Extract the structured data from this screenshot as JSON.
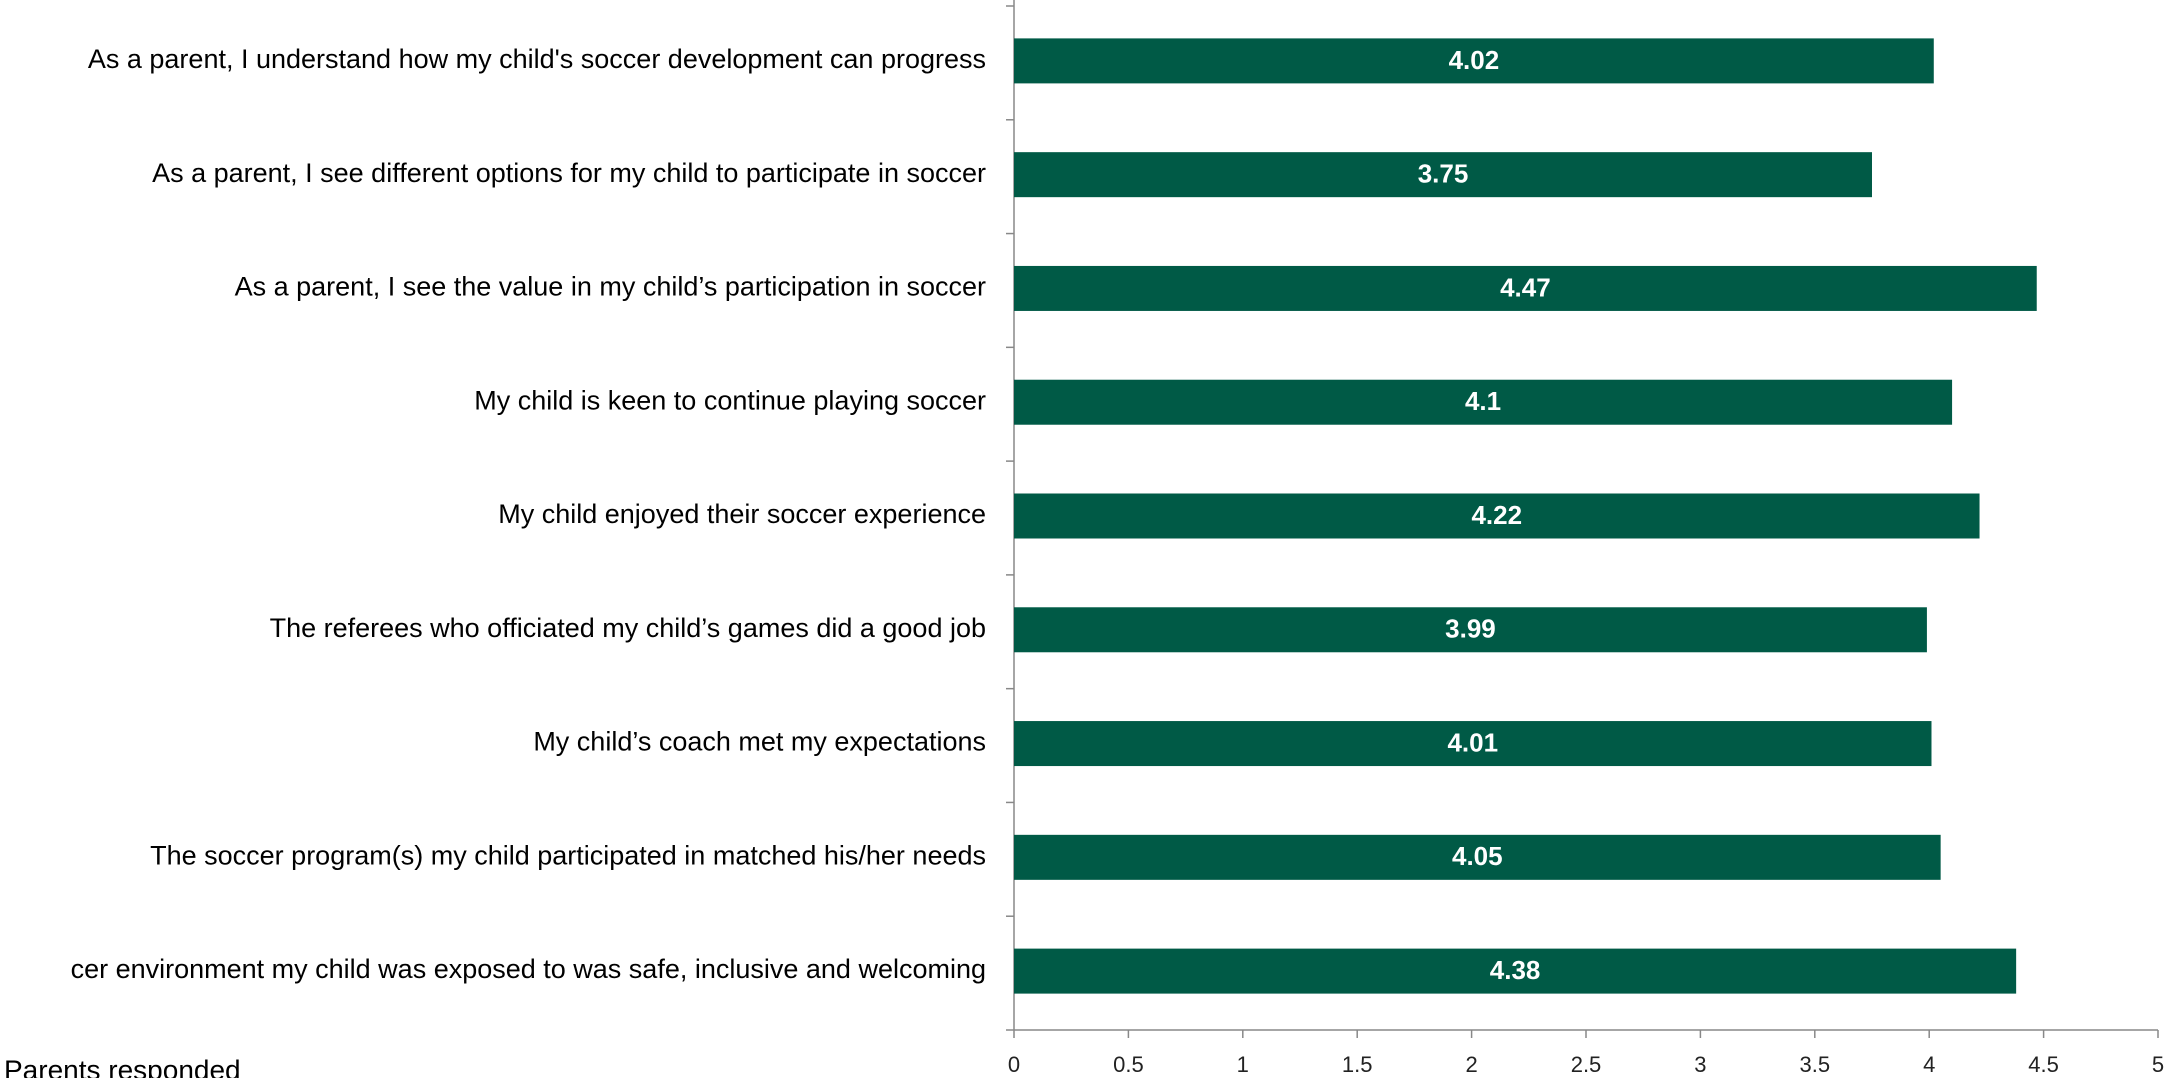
{
  "chart_data": {
    "type": "barh",
    "categories": [
      "As a parent, I understand how my child's soccer development can progress",
      "As a parent, I see different options for my child to participate in soccer",
      "As a parent, I see the value in my child’s participation in soccer",
      "My child is keen to continue playing soccer",
      "My child enjoyed their soccer experience",
      "The referees who officiated my child’s games did a good job",
      "My child’s coach met my expectations",
      "The soccer program(s) my child participated in matched his/her needs",
      "cer environment my child was exposed to was safe, inclusive and welcoming"
    ],
    "values": [
      4.02,
      3.75,
      4.47,
      4.1,
      4.22,
      3.99,
      4.01,
      4.05,
      4.38
    ],
    "color": "#005a46",
    "xlim": [
      0,
      5
    ],
    "xticks": [
      0,
      0.5,
      1,
      1.5,
      2,
      2.5,
      3,
      3.5,
      4,
      4.5,
      5
    ],
    "footnote": "Parents  responded"
  }
}
